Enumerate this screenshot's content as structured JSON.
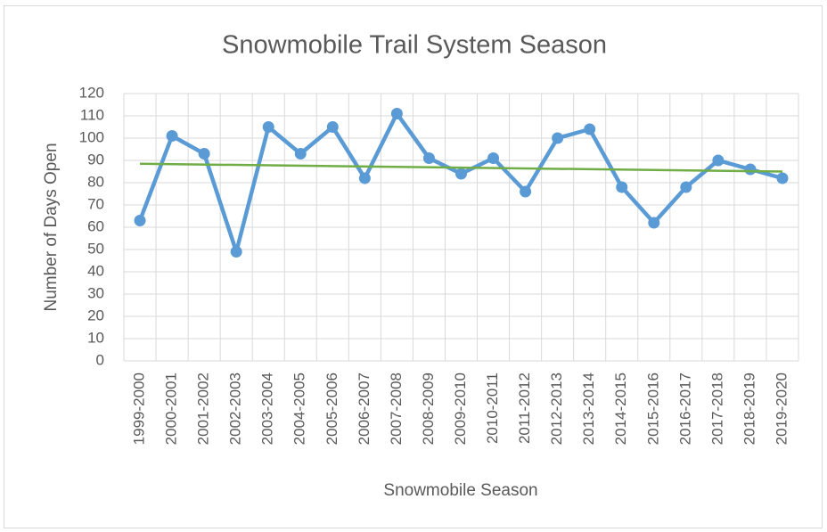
{
  "chart_data": {
    "type": "line",
    "title": "Snowmobile Trail System Season",
    "x_label": "Snowmobile Season",
    "y_label": "Number of Days Open",
    "categories": [
      "1999-2000",
      "2000-2001",
      "2001-2002",
      "2002-2003",
      "2003-2004",
      "2004-2005",
      "2005-2006",
      "2006-2007",
      "2007-2008",
      "2008-2009",
      "2009-2010",
      "2010-2011",
      "2011-2012",
      "2012-2013",
      "2013-2014",
      "2014-2015",
      "2015-2016",
      "2016-2017",
      "2017-2018",
      "2018-2019",
      "2019-2020"
    ],
    "series": [
      {
        "name": "Number of Days Open",
        "color": "#5b9bd5",
        "values": [
          63,
          101,
          93,
          49,
          105,
          93,
          105,
          82,
          111,
          91,
          84,
          91,
          76,
          100,
          104,
          78,
          62,
          78,
          90,
          86,
          82
        ]
      }
    ],
    "trendline": {
      "color": "#70ad47",
      "values": [
        88.5,
        85
      ]
    },
    "ylim": [
      0,
      120
    ],
    "yticks": [
      0,
      10,
      20,
      30,
      40,
      50,
      60,
      70,
      80,
      90,
      100,
      110,
      120
    ],
    "grid": true
  }
}
